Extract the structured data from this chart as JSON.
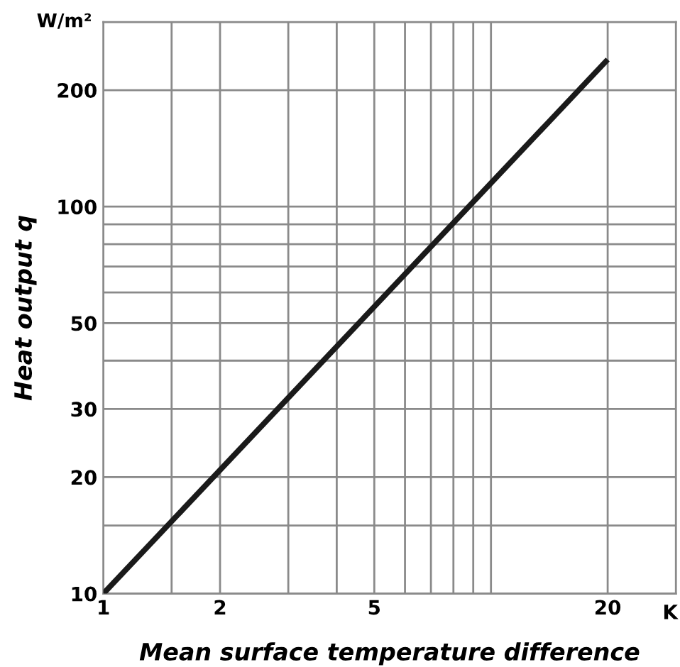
{
  "chart_data": {
    "type": "line",
    "xlabel": "Mean surface temperature difference",
    "ylabel": "Heat output q",
    "annotations": [
      "W/m²",
      "K"
    ],
    "x": [
      1,
      20
    ],
    "series": [
      {
        "color": "#1a1a1a",
        "values": [
          10,
          240
        ]
      }
    ],
    "log": "xy",
    "xlim": [
      1,
      30
    ],
    "ylim": [
      10,
      300
    ],
    "xticks": [
      1,
      {
        "value": 1.5,
        "label": null
      },
      2,
      {
        "value": 3,
        "label": null
      },
      {
        "value": 4,
        "label": null
      },
      5,
      {
        "value": 6,
        "label": null
      },
      {
        "value": 7,
        "label": null
      },
      {
        "value": 8,
        "label": null
      },
      {
        "value": 9,
        "label": null
      },
      {
        "value": 10,
        "label": null
      },
      20
    ],
    "yticks": [
      10,
      {
        "value": 15,
        "label": null
      },
      20,
      30,
      {
        "value": 40,
        "label": null
      },
      50,
      {
        "value": 60,
        "label": null
      },
      {
        "value": 70,
        "label": null
      },
      {
        "value": 80,
        "label": null
      },
      {
        "value": 90,
        "label": null
      },
      100,
      200
    ],
    "grid": true,
    "marker": "none",
    "line_style": "solid"
  }
}
